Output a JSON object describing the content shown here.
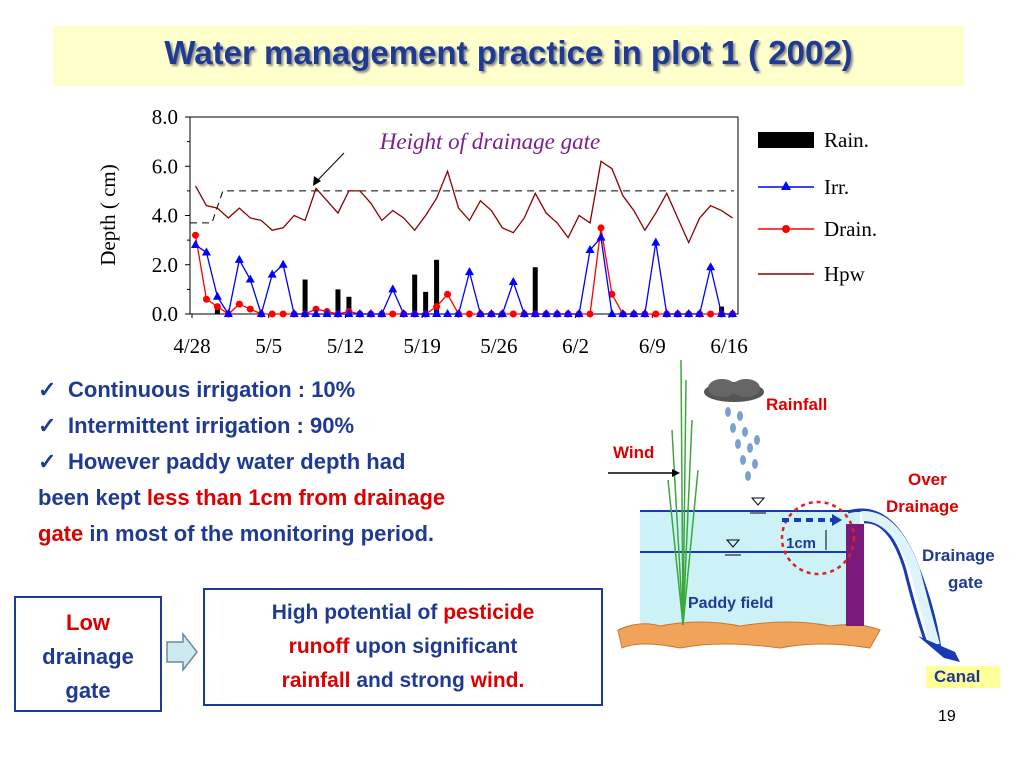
{
  "slide": {
    "title": "Water management practice in plot 1 ( 2002)",
    "page_number": "19"
  },
  "bullets": [
    {
      "text": "Continuous  irrigation : 10%"
    },
    {
      "text": "Intermittent irrigation : 90%"
    },
    {
      "part1": "However paddy water depth had",
      "part2": "been kept ",
      "red": "less than 1cm from drainage",
      "red2": "gate",
      "part3": " in most of the monitoring period."
    }
  ],
  "box_low": {
    "line1": "Low",
    "line2": "drainage",
    "line3": "gate"
  },
  "box_high": {
    "line1_a": "High potential of ",
    "line1_red": "pesticide",
    "line2_red": "runoff",
    "line2_b": " upon significant",
    "line3_red": "rainfall",
    "line3_b": " and strong ",
    "line3_red2": "wind."
  },
  "diagram": {
    "rainfall": "Rainfall",
    "wind": "Wind",
    "over_drainage_1": "Over",
    "over_drainage_2": "Drainage",
    "drainage_gate_1": "Drainage",
    "drainage_gate_2": "gate",
    "one_cm": "1cm",
    "paddy_field": "Paddy field",
    "canal": "Canal"
  },
  "colors": {
    "title": "#1f3a93",
    "title_bg": "#ffffcc",
    "rain": "#000000",
    "irr": "#0000ff",
    "drain": "#ff0000",
    "hpw": "#8b0000",
    "red_text": "#dd0000",
    "water": "#ccf2f7",
    "gate": "#7a1a7a",
    "canal_bg": "#ffff99"
  },
  "chart_data": {
    "type": "bar+line",
    "ylabel": "Depth ( cm)",
    "ylim": [
      0,
      8
    ],
    "yticks": [
      "0.0",
      "2.0",
      "4.0",
      "6.0",
      "8.0"
    ],
    "xticks": [
      "4/28",
      "5/5",
      "5/12",
      "5/19",
      "5/26",
      "6/2",
      "6/9",
      "6/16"
    ],
    "annotation": "Height of drainage gate",
    "gate_height": 5.0,
    "days": 50,
    "series": [
      {
        "name": "Rain.",
        "kind": "bar",
        "values": [
          0,
          0,
          0.2,
          0,
          0,
          0,
          0,
          0,
          0,
          0,
          1.4,
          0,
          0,
          1.0,
          0.7,
          0.1,
          0,
          0,
          0,
          0,
          1.6,
          0.9,
          2.2,
          0,
          0,
          0,
          0,
          0,
          0,
          0,
          0,
          1.9,
          0,
          0.1,
          0,
          0,
          0.1,
          0,
          0,
          0,
          0,
          0,
          0,
          0,
          0,
          0,
          0,
          0,
          0.3,
          0.1
        ]
      },
      {
        "name": "Irr.",
        "kind": "line",
        "marker": "triangle",
        "values": [
          2.8,
          2.5,
          0.7,
          0,
          2.2,
          1.4,
          0,
          1.6,
          2.0,
          0,
          0,
          0,
          0,
          0,
          0,
          0,
          0,
          0,
          1.0,
          0,
          0,
          0,
          0,
          0,
          0,
          1.7,
          0,
          0,
          0,
          1.3,
          0,
          0,
          0,
          0,
          0,
          0,
          2.6,
          3.1,
          0,
          0,
          0,
          0,
          2.9,
          0,
          0,
          0,
          0,
          1.9,
          0,
          0
        ]
      },
      {
        "name": "Drain.",
        "kind": "line",
        "marker": "circle",
        "values": [
          3.2,
          0.6,
          0.3,
          0,
          0.4,
          0.2,
          0,
          0,
          0,
          0,
          0,
          0.2,
          0.1,
          0,
          0.1,
          0,
          0,
          0,
          0,
          0,
          0,
          0,
          0.3,
          0.8,
          0,
          0,
          0,
          0,
          0,
          0,
          0,
          0,
          0,
          0,
          0,
          0,
          0,
          3.5,
          0.8,
          0,
          0,
          0,
          0,
          0,
          0,
          0,
          0,
          0,
          0,
          0
        ]
      },
      {
        "name": "Hpw",
        "kind": "line",
        "marker": "none",
        "values": [
          5.2,
          4.4,
          4.3,
          3.9,
          4.3,
          3.9,
          3.8,
          3.4,
          3.5,
          4.0,
          3.8,
          5.1,
          4.6,
          4.1,
          5.0,
          5.0,
          4.5,
          3.8,
          4.2,
          3.9,
          3.4,
          4.0,
          4.7,
          5.8,
          4.3,
          3.8,
          4.6,
          4.2,
          3.5,
          3.3,
          3.9,
          4.9,
          4.1,
          3.7,
          3.1,
          4.0,
          3.7,
          6.2,
          5.9,
          4.8,
          4.2,
          3.4,
          4.1,
          4.9,
          3.9,
          2.9,
          3.9,
          4.4,
          4.2,
          3.9
        ]
      }
    ]
  }
}
